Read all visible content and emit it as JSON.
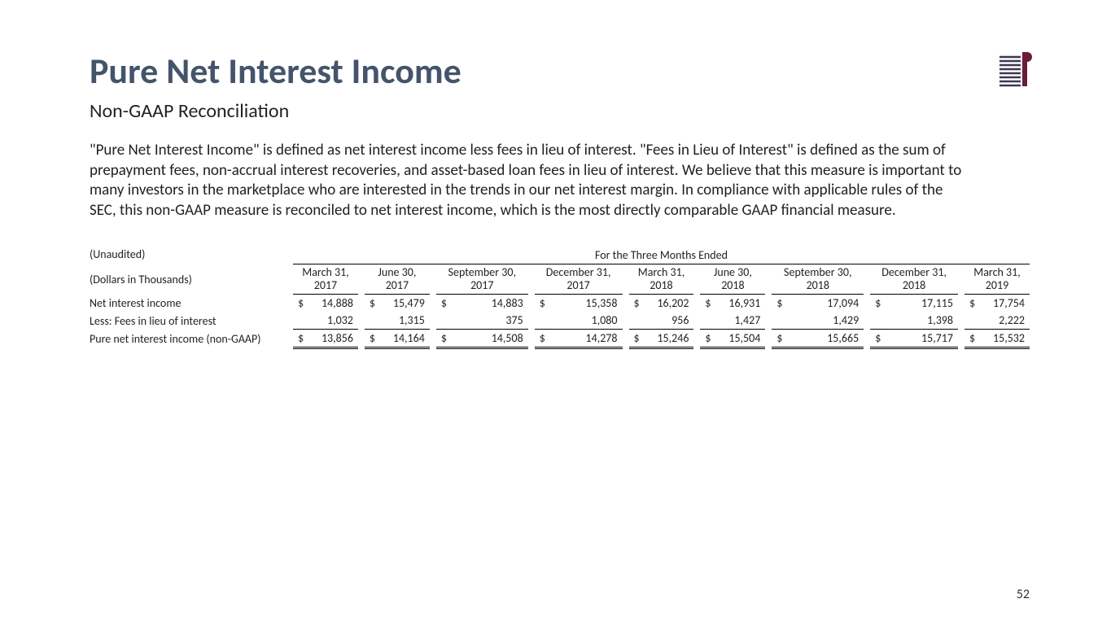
{
  "title": "Pure Net Interest Income",
  "subtitle": "Non-GAAP Reconciliation",
  "body": "\"Pure Net Interest Income\" is defined as net interest income less fees in lieu of interest. \"Fees in Lieu of Interest\" is defined as the sum of prepayment fees, non-accrual interest recoveries, and asset-based loan fees in lieu of interest. We believe that this measure is important to many investors in the marketplace who are interested in the trends in our net interest margin. In compliance with applicable rules of the SEC, this non-GAAP measure is reconciled to net interest income, which is the most directly comparable GAAP financial measure.",
  "page_number": "52",
  "table": {
    "note_unaudited": "(Unaudited)",
    "note_units": "(Dollars in Thousands)",
    "span_header": "For the Three Months Ended",
    "periods": [
      {
        "l1": "March 31,",
        "l2": "2017"
      },
      {
        "l1": "June 30,",
        "l2": "2017"
      },
      {
        "l1": "September 30,",
        "l2": "2017"
      },
      {
        "l1": "December 31,",
        "l2": "2017"
      },
      {
        "l1": "March 31,",
        "l2": "2018"
      },
      {
        "l1": "June 30,",
        "l2": "2018"
      },
      {
        "l1": "September 30,",
        "l2": "2018"
      },
      {
        "l1": "December 31,",
        "l2": "2018"
      },
      {
        "l1": "March 31,",
        "l2": "2019"
      }
    ],
    "rows": [
      {
        "label": "Net interest income",
        "currency": true,
        "cls": "row-nii",
        "values": [
          "14,888",
          "15,479",
          "14,883",
          "15,358",
          "16,202",
          "16,931",
          "17,094",
          "17,115",
          "17,754"
        ]
      },
      {
        "label": "Less: Fees in lieu of interest",
        "currency": false,
        "cls": "row-fees",
        "values": [
          "1,032",
          "1,315",
          "375",
          "1,080",
          "956",
          "1,427",
          "1,429",
          "1,398",
          "2,222"
        ]
      },
      {
        "label": "Pure net interest income (non-GAAP)",
        "currency": true,
        "cls": "row-total",
        "values": [
          "13,856",
          "14,164",
          "14,508",
          "14,278",
          "15,246",
          "15,504",
          "15,665",
          "15,717",
          "15,532"
        ]
      }
    ]
  },
  "colors": {
    "title": "#44546a",
    "logo_bars": "#3f3752",
    "logo_accent": "#6a1b3a"
  }
}
